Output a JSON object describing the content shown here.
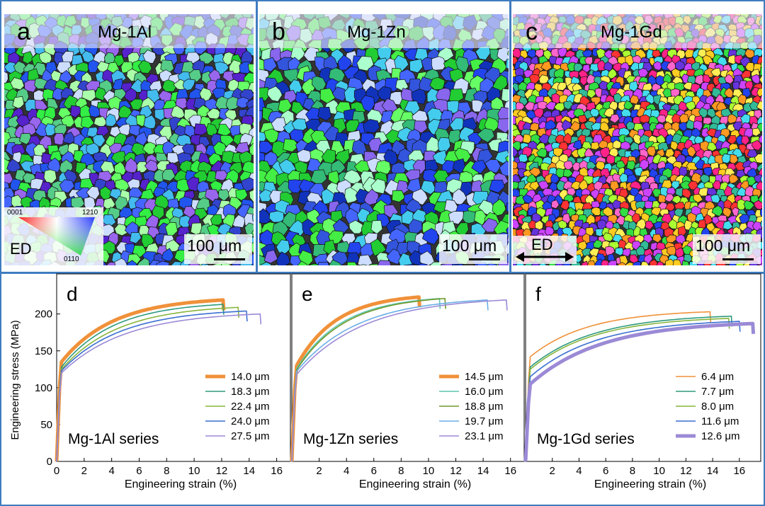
{
  "panels": [
    {
      "letter": "a",
      "alloy": "Mg-1Al",
      "scale_bar": "100 μm",
      "palette": [
        "#22cc33",
        "#33ee44",
        "#2255ee",
        "#3344cc",
        "#4466ff",
        "#55cc88",
        "#9966ee",
        "#66ff66",
        "#aaffaa",
        "#44bbee",
        "#ccddff",
        "#5522cc"
      ]
    },
    {
      "letter": "b",
      "alloy": "Mg-1Zn",
      "scale_bar": "100 μm",
      "palette": [
        "#22cc33",
        "#44ee44",
        "#2244ee",
        "#3355dd",
        "#4466ff",
        "#33bb77",
        "#8866ee",
        "#66ff66",
        "#aaffcc",
        "#44ccee",
        "#ccddff",
        "#1133bb"
      ]
    },
    {
      "letter": "c",
      "alloy": "Mg-1Gd",
      "scale_bar": "100 μm",
      "palette": [
        "#ff3333",
        "#ff66cc",
        "#ffcc22",
        "#33dd44",
        "#2244ee",
        "#cc44ff",
        "#ff9922",
        "#44ddee",
        "#aaff33",
        "#ff2288",
        "#6633dd",
        "#ffee55",
        "#33bb99"
      ]
    }
  ],
  "ipf_key": {
    "corner_0001": "0001",
    "corner_1210": "1210",
    "corner_0110": "0110",
    "ed_label": "ED"
  },
  "ed_arrow_label": "ED",
  "chart_data": [
    {
      "panel": "d",
      "type": "line",
      "annotation": "Mg-1Al series",
      "xlabel": "Engineering strain (%)",
      "ylabel": "Engineering stress (MPa)",
      "xlim": [
        0,
        17
      ],
      "ylim": [
        0,
        240
      ],
      "xticks": [
        0,
        2,
        4,
        6,
        8,
        10,
        12,
        14,
        16
      ],
      "yticks": [
        0,
        50,
        100,
        150,
        200
      ],
      "legend_position": "bottom-right",
      "series": [
        {
          "name": "14.0 μm",
          "color": "#f0913a",
          "width": 5,
          "yield": 135,
          "uts": 219,
          "fracture_strain": 12.1
        },
        {
          "name": "18.3 μm",
          "color": "#2e9a7c",
          "width": 1.6,
          "yield": 128,
          "uts": 213,
          "fracture_strain": 12.1
        },
        {
          "name": "22.4 μm",
          "color": "#86b53c",
          "width": 1.6,
          "yield": 125,
          "uts": 209,
          "fracture_strain": 13.2
        },
        {
          "name": "24.0 μm",
          "color": "#3a6fd0",
          "width": 1.6,
          "yield": 123,
          "uts": 204,
          "fracture_strain": 13.8
        },
        {
          "name": "27.5 μm",
          "color": "#9b8ad6",
          "width": 1.6,
          "yield": 120,
          "uts": 200,
          "fracture_strain": 14.8
        }
      ]
    },
    {
      "panel": "e",
      "type": "line",
      "annotation": "Mg-1Zn series",
      "xlabel": "Engineering strain (%)",
      "ylabel": "",
      "xlim": [
        0,
        17
      ],
      "ylim": [
        0,
        240
      ],
      "xticks": [
        2,
        4,
        6,
        8,
        10,
        12,
        14,
        16
      ],
      "yticks": [],
      "legend_position": "bottom-right",
      "series": [
        {
          "name": "14.5 μm",
          "color": "#f0913a",
          "width": 5,
          "yield": 130,
          "uts": 223,
          "fracture_strain": 9.3
        },
        {
          "name": "16.0 μm",
          "color": "#5cc6b0",
          "width": 1.6,
          "yield": 126,
          "uts": 221,
          "fracture_strain": 10.8
        },
        {
          "name": "18.8 μm",
          "color": "#6f9a2c",
          "width": 1.6,
          "yield": 124,
          "uts": 221,
          "fracture_strain": 11.2
        },
        {
          "name": "19.7 μm",
          "color": "#6aaee6",
          "width": 1.6,
          "yield": 122,
          "uts": 219,
          "fracture_strain": 14.3
        },
        {
          "name": "23.1 μm",
          "color": "#9b8ad6",
          "width": 1.6,
          "yield": 118,
          "uts": 219,
          "fracture_strain": 15.7
        }
      ]
    },
    {
      "panel": "f",
      "type": "line",
      "annotation": "Mg-1Gd series",
      "xlabel": "Engineering strain (%)",
      "ylabel": "",
      "xlim": [
        0,
        17.6
      ],
      "ylim": [
        0,
        240
      ],
      "xticks": [
        2,
        4,
        6,
        8,
        10,
        12,
        14,
        16
      ],
      "yticks": [],
      "legend_position": "bottom-right",
      "series": [
        {
          "name": "6.4 μm",
          "color": "#f0913a",
          "width": 1.6,
          "yield": 142,
          "uts": 203,
          "fracture_strain": 13.8
        },
        {
          "name": "7.7 μm",
          "color": "#2e9a7c",
          "width": 1.6,
          "yield": 128,
          "uts": 197,
          "fracture_strain": 15.4
        },
        {
          "name": "8.0 μm",
          "color": "#86b53c",
          "width": 1.6,
          "yield": 125,
          "uts": 194,
          "fracture_strain": 15.2
        },
        {
          "name": "11.6 μm",
          "color": "#3a6fd0",
          "width": 1.6,
          "yield": 115,
          "uts": 190,
          "fracture_strain": 16.0
        },
        {
          "name": "12.6 μm",
          "color": "#9b8ad6",
          "width": 5,
          "yield": 105,
          "uts": 187,
          "fracture_strain": 17.0
        }
      ]
    }
  ]
}
